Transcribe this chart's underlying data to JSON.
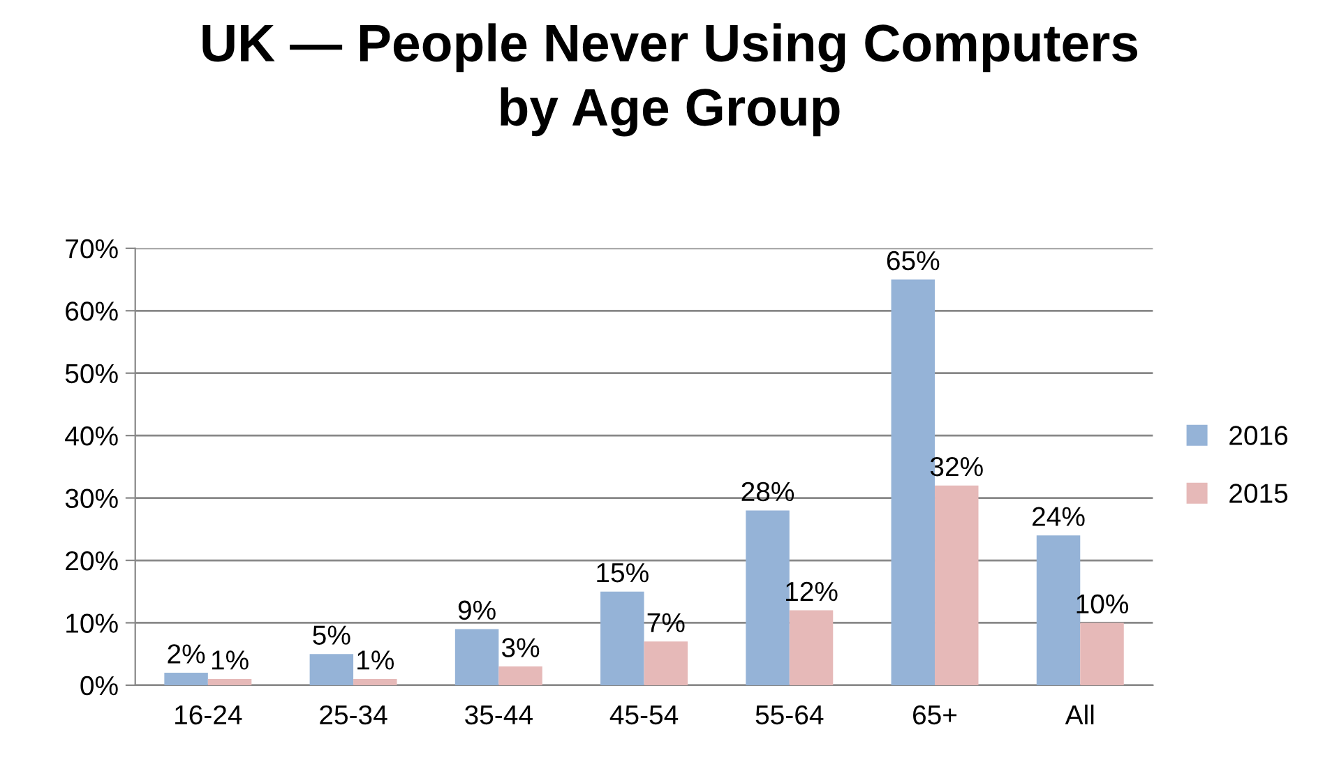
{
  "chart_data": {
    "type": "bar",
    "title": "UK — People Never Using Computers\nby Age Group",
    "categories": [
      "16-24",
      "25-34",
      "35-44",
      "45-54",
      "55-64",
      "65+",
      "All"
    ],
    "series": [
      {
        "name": "2016",
        "color": "#95b3d7",
        "values": [
          2,
          5,
          9,
          15,
          28,
          65,
          24
        ],
        "value_labels": [
          "2%",
          "5%",
          "9%",
          "15%",
          "28%",
          "65%",
          "24%"
        ]
      },
      {
        "name": "2015",
        "color": "#e6b9b8",
        "values": [
          1,
          1,
          3,
          7,
          12,
          32,
          10
        ],
        "value_labels": [
          "1%",
          "1%",
          "3%",
          "7%",
          "12%",
          "32%",
          "10%"
        ]
      }
    ],
    "ylim": [
      0,
      70
    ],
    "yticks": [
      {
        "value": 0,
        "label": "0%"
      },
      {
        "value": 10,
        "label": "10%"
      },
      {
        "value": 20,
        "label": "20%"
      },
      {
        "value": 30,
        "label": "30%"
      },
      {
        "value": 40,
        "label": "40%"
      },
      {
        "value": 50,
        "label": "50%"
      },
      {
        "value": 60,
        "label": "60%"
      },
      {
        "value": 70,
        "label": "70%"
      }
    ],
    "grid": "y",
    "legend": "right"
  }
}
